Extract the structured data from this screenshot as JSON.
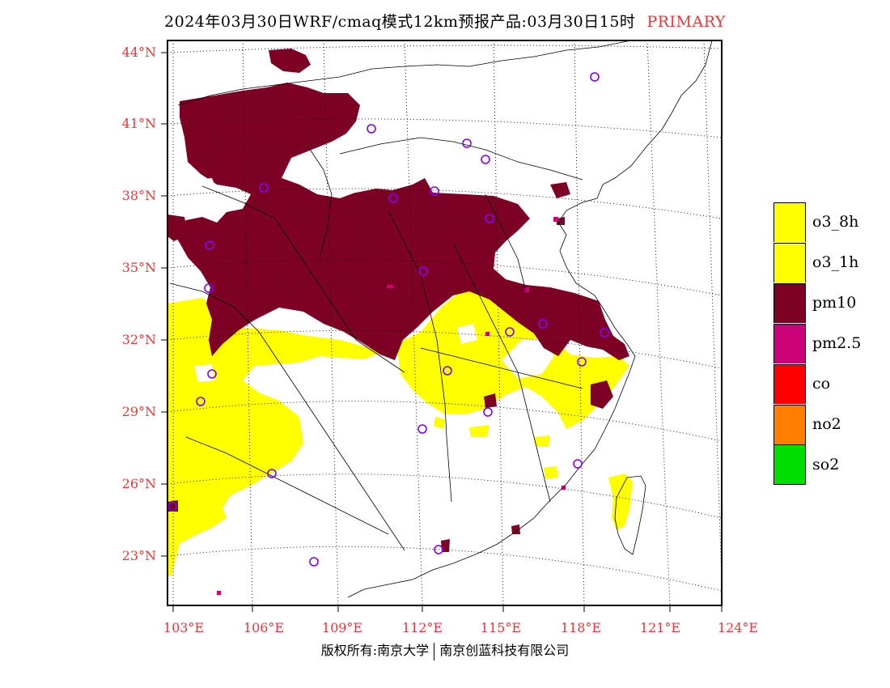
{
  "title": {
    "main": "2024年03月30日WRF/cmaq模式12km预报产品:03月30日15时",
    "tag": "PRIMARY"
  },
  "axes": {
    "lat_labels": [
      "44°N",
      "41°N",
      "38°N",
      "35°N",
      "32°N",
      "29°N",
      "26°N",
      "23°N"
    ],
    "lon_labels": [
      "103°E",
      "106°E",
      "109°E",
      "112°E",
      "115°E",
      "118°E",
      "121°E",
      "124°E"
    ]
  },
  "legend": [
    {
      "label": "o3_8h",
      "color": "#ffff00"
    },
    {
      "label": "o3_1h",
      "color": "#ffff00"
    },
    {
      "label": "pm10",
      "color": "#7d0025"
    },
    {
      "label": "pm2.5",
      "color": "#cc0077"
    },
    {
      "label": "co",
      "color": "#ff0000"
    },
    {
      "label": "no2",
      "color": "#ff7e00"
    },
    {
      "label": "so2",
      "color": "#00dd00"
    }
  ],
  "copyright": {
    "left": "版权所有:南京大学",
    "right": "南京创蓝科技有限公司"
  },
  "colors": {
    "axis_label": "#e8383a",
    "station_marker": "#8000ff"
  }
}
